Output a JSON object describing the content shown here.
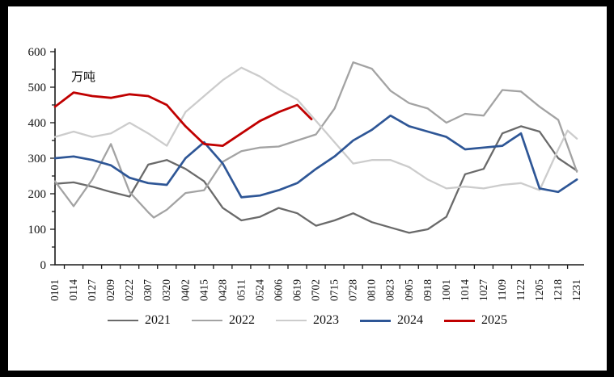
{
  "chart_data": {
    "type": "line",
    "title": "",
    "unit_label": "万吨",
    "ylabel": "",
    "xlabel": "",
    "grid": false,
    "legend_position": "bottom-center",
    "y_axis": {
      "min": 0,
      "max": 600,
      "major_step": 100,
      "minor_step": 50,
      "tick_labels": [
        "0",
        "100",
        "200",
        "300",
        "400",
        "500",
        "600"
      ]
    },
    "x_labels": [
      "0101",
      "0114",
      "0127",
      "0209",
      "0222",
      "0307",
      "0320",
      "0402",
      "0415",
      "0428",
      "0511",
      "0524",
      "0606",
      "0619",
      "0702",
      "0715",
      "0728",
      "0810",
      "0823",
      "0905",
      "0918",
      "1001",
      "1014",
      "1027",
      "1109",
      "1122",
      "1205",
      "1218",
      "1231"
    ],
    "series": [
      {
        "name": "2021",
        "color": "#6a6a6a",
        "stroke_width": 2.3,
        "x": [
          0,
          1,
          2,
          3,
          4,
          5,
          6,
          7,
          8,
          9,
          10,
          11,
          12,
          13,
          14,
          15,
          16,
          17,
          18,
          19,
          20,
          21,
          22,
          23,
          24,
          25,
          26,
          27,
          28
        ],
        "values": [
          228,
          232,
          220,
          205,
          192,
          282,
          295,
          270,
          235,
          160,
          125,
          135,
          160,
          145,
          110,
          125,
          145,
          120,
          105,
          90,
          100,
          135,
          255,
          270,
          370,
          390,
          375,
          300,
          265
        ]
      },
      {
        "name": "2022",
        "color": "#a3a3a3",
        "stroke_width": 2.3,
        "x": [
          0,
          1,
          2,
          3,
          4,
          5,
          5.3,
          6,
          7,
          8,
          9,
          10,
          11,
          12,
          13,
          14,
          15,
          16,
          17,
          18,
          19,
          20,
          21,
          22,
          23,
          24,
          25,
          26,
          27,
          28
        ],
        "values": [
          235,
          165,
          240,
          340,
          205,
          148,
          133,
          155,
          202,
          210,
          290,
          320,
          330,
          333,
          350,
          367,
          440,
          570,
          552,
          490,
          455,
          440,
          400,
          425,
          420,
          492,
          488,
          445,
          408,
          262
        ]
      },
      {
        "name": "2023",
        "color": "#cccccc",
        "stroke_width": 2.3,
        "x": [
          0,
          1,
          2,
          3,
          4,
          5,
          6,
          7,
          8,
          9,
          10,
          11,
          12,
          13,
          14,
          15,
          16,
          17,
          18,
          19,
          20,
          21,
          22,
          23,
          24,
          25,
          26,
          27,
          27.5,
          28
        ],
        "values": [
          360,
          375,
          360,
          370,
          400,
          370,
          335,
          430,
          475,
          520,
          555,
          530,
          495,
          465,
          405,
          345,
          285,
          295,
          295,
          275,
          240,
          215,
          220,
          215,
          225,
          230,
          210,
          325,
          378,
          355
        ]
      },
      {
        "name": "2024",
        "color": "#2e5696",
        "stroke_width": 2.7,
        "x": [
          0,
          1,
          2,
          3,
          4,
          5,
          6,
          7,
          8,
          9,
          10,
          11,
          12,
          13,
          14,
          15,
          16,
          17,
          18,
          19,
          20,
          21,
          22,
          23,
          24,
          25,
          26,
          27,
          28
        ],
        "values": [
          300,
          305,
          295,
          280,
          245,
          230,
          225,
          300,
          345,
          285,
          190,
          195,
          210,
          230,
          270,
          305,
          350,
          380,
          420,
          390,
          375,
          360,
          325,
          330,
          335,
          370,
          215,
          205,
          240
        ]
      },
      {
        "name": "2025",
        "color": "#c00000",
        "stroke_width": 2.8,
        "x": [
          0,
          1,
          2,
          3,
          4,
          5,
          6,
          7,
          8,
          9,
          10,
          11,
          12,
          13,
          13.76
        ],
        "values": [
          445,
          485,
          475,
          470,
          480,
          475,
          450,
          390,
          340,
          335,
          370,
          405,
          430,
          450,
          410
        ]
      }
    ]
  },
  "legend": {
    "items": [
      {
        "label": "2021",
        "color": "#6a6a6a"
      },
      {
        "label": "2022",
        "color": "#a3a3a3"
      },
      {
        "label": "2023",
        "color": "#cccccc"
      },
      {
        "label": "2024",
        "color": "#2e5696"
      },
      {
        "label": "2025",
        "color": "#c00000"
      }
    ]
  }
}
